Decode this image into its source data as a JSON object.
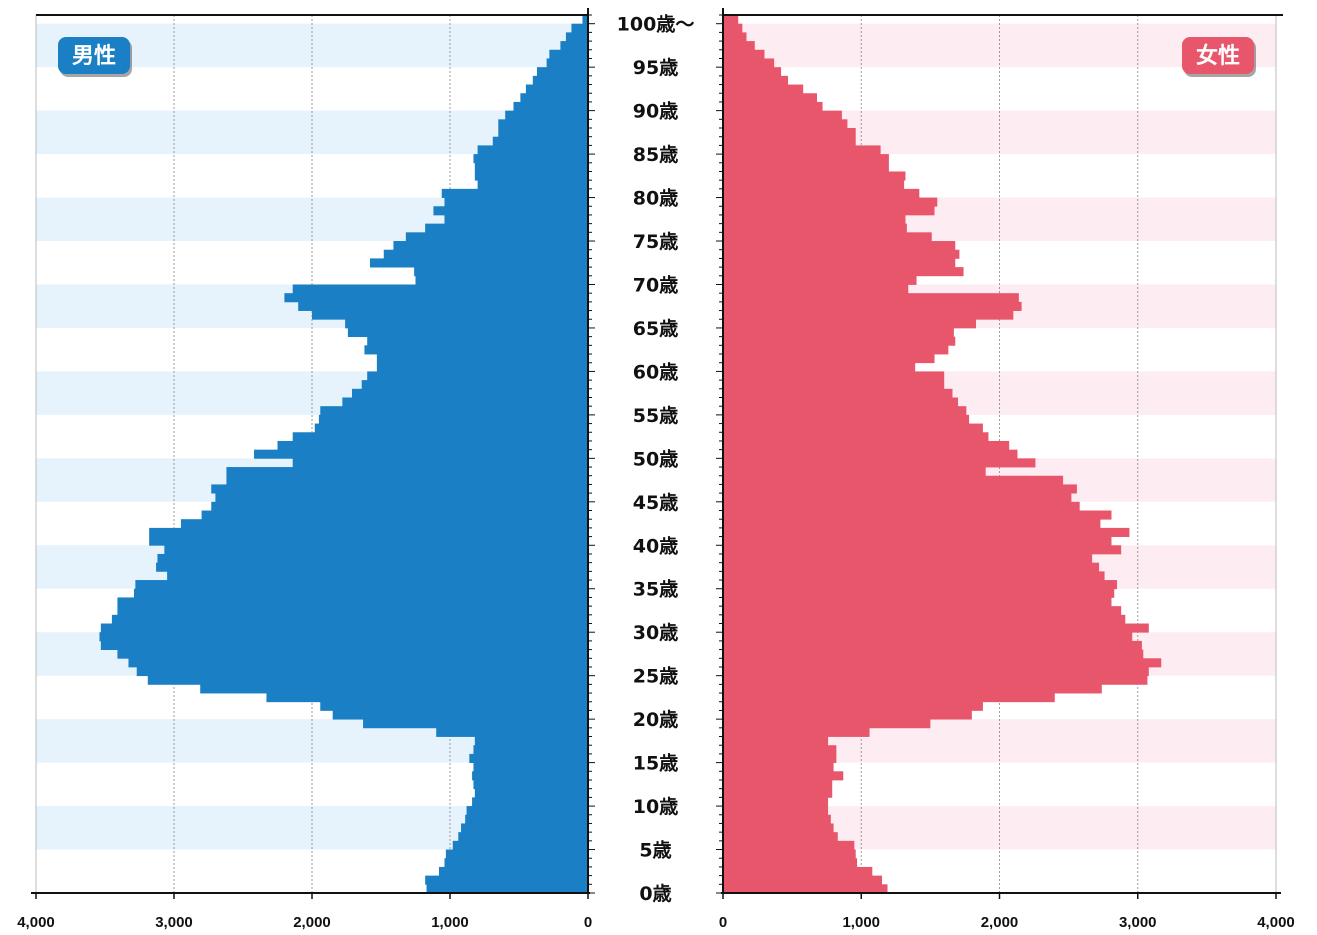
{
  "chart_data": {
    "type": "bar",
    "orientation": "horizontal-pyramid",
    "panels": [
      {
        "name": "男性",
        "color": "#1a7fc4",
        "band_color": "#e6f3fc",
        "xlim": [
          4000,
          0
        ]
      },
      {
        "name": "女性",
        "color": "#e8566c",
        "band_color": "#fdedf2",
        "xlim": [
          0,
          4000
        ]
      }
    ],
    "age_labels": [
      "0歳",
      "5歳",
      "10歳",
      "15歳",
      "20歳",
      "25歳",
      "30歳",
      "35歳",
      "40歳",
      "45歳",
      "50歳",
      "55歳",
      "60歳",
      "65歳",
      "70歳",
      "75歳",
      "80歳",
      "85歳",
      "90歳",
      "95歳",
      "100歳〜"
    ],
    "ages": [
      0,
      1,
      2,
      3,
      4,
      5,
      6,
      7,
      8,
      9,
      10,
      11,
      12,
      13,
      14,
      15,
      16,
      17,
      18,
      19,
      20,
      21,
      22,
      23,
      24,
      25,
      26,
      27,
      28,
      29,
      30,
      31,
      32,
      33,
      34,
      35,
      36,
      37,
      38,
      39,
      40,
      41,
      42,
      43,
      44,
      45,
      46,
      47,
      48,
      49,
      50,
      51,
      52,
      53,
      54,
      55,
      56,
      57,
      58,
      59,
      60,
      61,
      62,
      63,
      64,
      65,
      66,
      67,
      68,
      69,
      70,
      71,
      72,
      73,
      74,
      75,
      76,
      77,
      78,
      79,
      80,
      81,
      82,
      83,
      84,
      85,
      86,
      87,
      88,
      89,
      90,
      91,
      92,
      93,
      94,
      95,
      96,
      97,
      98,
      99,
      100
    ],
    "series": [
      {
        "name": "男性",
        "values": [
          1170,
          1180,
          1080,
          1040,
          1030,
          980,
          940,
          920,
          890,
          880,
          840,
          820,
          830,
          840,
          830,
          860,
          830,
          820,
          1100,
          1630,
          1850,
          1940,
          2330,
          2810,
          3190,
          3270,
          3330,
          3410,
          3530,
          3540,
          3530,
          3450,
          3410,
          3410,
          3290,
          3280,
          3050,
          3130,
          3120,
          3070,
          3180,
          3180,
          2950,
          2800,
          2730,
          2700,
          2730,
          2620,
          2620,
          2140,
          2420,
          2250,
          2140,
          1980,
          1950,
          1940,
          1780,
          1710,
          1640,
          1600,
          1530,
          1530,
          1620,
          1600,
          1740,
          1760,
          2000,
          2100,
          2200,
          2140,
          1250,
          1260,
          1580,
          1480,
          1410,
          1320,
          1180,
          1040,
          1120,
          1040,
          1060,
          800,
          820,
          820,
          830,
          800,
          690,
          650,
          650,
          600,
          540,
          490,
          450,
          400,
          370,
          300,
          280,
          200,
          160,
          120,
          40
        ]
      },
      {
        "name": "女性",
        "values": [
          1190,
          1150,
          1080,
          970,
          960,
          950,
          830,
          800,
          780,
          760,
          760,
          790,
          790,
          870,
          800,
          820,
          820,
          760,
          1060,
          1500,
          1800,
          1880,
          2400,
          2740,
          3070,
          3080,
          3170,
          3040,
          3030,
          2960,
          3080,
          2910,
          2880,
          2810,
          2830,
          2850,
          2760,
          2720,
          2670,
          2880,
          2810,
          2940,
          2730,
          2810,
          2580,
          2520,
          2560,
          2460,
          1900,
          2260,
          2130,
          2070,
          1920,
          1880,
          1780,
          1760,
          1700,
          1660,
          1600,
          1600,
          1390,
          1530,
          1630,
          1680,
          1670,
          1830,
          2100,
          2160,
          2140,
          1340,
          1400,
          1740,
          1680,
          1710,
          1680,
          1510,
          1330,
          1320,
          1530,
          1550,
          1420,
          1310,
          1320,
          1200,
          1200,
          1140,
          960,
          960,
          900,
          860,
          720,
          680,
          580,
          470,
          420,
          370,
          300,
          230,
          170,
          140,
          110
        ]
      }
    ],
    "x_ticks": [
      "4,000",
      "3,000",
      "2,000",
      "1,000",
      "0"
    ],
    "x_ticks_right": [
      "0",
      "1,000",
      "2,000",
      "3,000",
      "4,000"
    ],
    "grid": "vertical dotted at 1,000 intervals; alternating 5-year bands"
  }
}
